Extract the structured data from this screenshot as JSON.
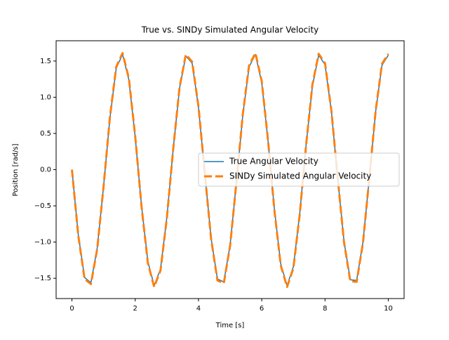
{
  "chart_data": {
    "type": "line",
    "title": "True vs. SINDy Simulated Angular Velocity",
    "xlabel": "Time [s]",
    "ylabel": "Position [rad/s]",
    "x": [
      0,
      0.2,
      0.4,
      0.6,
      0.8,
      1.0,
      1.2,
      1.4,
      1.6,
      1.8,
      2.0,
      2.2,
      2.4,
      2.6,
      2.8,
      3.0,
      3.2,
      3.4,
      3.6,
      3.8,
      4.0,
      4.2,
      4.4,
      4.6,
      4.8,
      5.0,
      5.2,
      5.4,
      5.6,
      5.8,
      6.0,
      6.2,
      6.4,
      6.6,
      6.8,
      7.0,
      7.2,
      7.4,
      7.6,
      7.8,
      8.0,
      8.2,
      8.4,
      8.6,
      8.8,
      9.0,
      9.2,
      9.4,
      9.6,
      9.8,
      10.0
    ],
    "series": [
      {
        "name": "True Angular Velocity",
        "color": "#1f77b4",
        "dash": false,
        "width": 1.5,
        "values": [
          0,
          -0.9,
          -1.49,
          -1.56,
          -1.08,
          -0.23,
          0.71,
          1.4,
          1.59,
          1.24,
          0.45,
          -0.5,
          -1.27,
          -1.6,
          -1.37,
          -0.66,
          0.28,
          1.12,
          1.57,
          1.47,
          0.86,
          -0.05,
          -0.95,
          -1.51,
          -1.55,
          -1.04,
          -0.17,
          0.75,
          1.42,
          1.59,
          1.2,
          0.39,
          -0.55,
          -1.3,
          -1.6,
          -1.34,
          -0.61,
          0.33,
          1.15,
          1.58,
          1.45,
          0.81,
          -0.11,
          -0.99,
          -1.52,
          -1.53,
          -1.0,
          -0.12,
          0.8,
          1.44,
          1.58
        ]
      },
      {
        "name": "SINDy Simulated Angular Velocity",
        "color": "#ff7f0e",
        "dash": true,
        "width": 3,
        "values": [
          0,
          -0.91,
          -1.51,
          -1.58,
          -1.09,
          -0.23,
          0.72,
          1.42,
          1.61,
          1.26,
          0.46,
          -0.51,
          -1.29,
          -1.62,
          -1.39,
          -0.67,
          0.28,
          1.13,
          1.59,
          1.49,
          0.87,
          -0.05,
          -0.96,
          -1.53,
          -1.57,
          -1.05,
          -0.17,
          0.76,
          1.44,
          1.61,
          1.22,
          0.4,
          -0.56,
          -1.32,
          -1.62,
          -1.36,
          -0.62,
          0.33,
          1.17,
          1.6,
          1.47,
          0.82,
          -0.11,
          -1.0,
          -1.54,
          -1.55,
          -1.01,
          -0.12,
          0.81,
          1.46,
          1.6
        ]
      }
    ],
    "xlim": [
      -0.5,
      10.5
    ],
    "ylim": [
      -1.78,
      1.78
    ],
    "xticks": [
      0,
      2,
      4,
      6,
      8,
      10
    ],
    "yticks": [
      {
        "value": -1.5,
        "label": "−1.5"
      },
      {
        "value": -1.0,
        "label": "−1.0"
      },
      {
        "value": -0.5,
        "label": "−0.5"
      },
      {
        "value": 0,
        "label": "0.0"
      },
      {
        "value": 0.5,
        "label": "0.5"
      },
      {
        "value": 1.0,
        "label": "1.0"
      },
      {
        "value": 1.5,
        "label": "1.5"
      }
    ],
    "legend_loc": "center right"
  }
}
